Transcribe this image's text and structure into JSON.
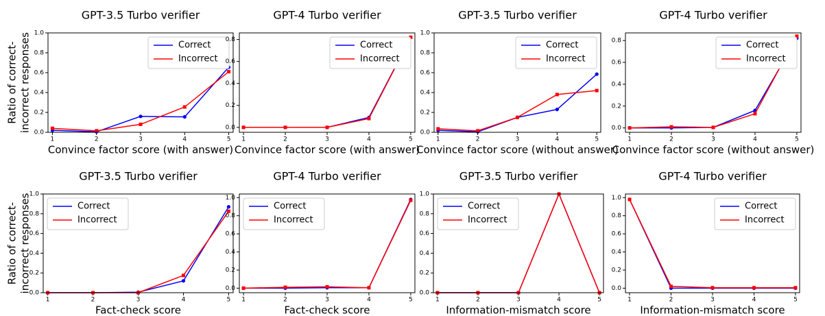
{
  "chart_data": [
    {
      "type": "line",
      "title": "GPT-3.5 Turbo verifier",
      "xlabel": "Convince factor score (with answer)",
      "ylabel": [
        "Ratio of correct-",
        "incorrect responses"
      ],
      "x": [
        1,
        2,
        3,
        4,
        5
      ],
      "xlim": [
        0.9,
        5.1
      ],
      "xticks": [
        1,
        2,
        3,
        4,
        5
      ],
      "ylim": [
        0,
        1
      ],
      "yticks": [
        {
          "value": 0,
          "label": "0.0"
        },
        0.2,
        0.4,
        0.6,
        0.8,
        {
          "value": 1,
          "label": "1.0"
        }
      ],
      "legend": "upper right",
      "series": [
        {
          "name": "Correct",
          "color": "#0000ff",
          "marker": "circle",
          "values": [
            0.02,
            0.005,
            0.16,
            0.155,
            0.655
          ]
        },
        {
          "name": "Incorrect",
          "color": "#ff0000",
          "marker": "square",
          "values": [
            0.04,
            0.015,
            0.08,
            0.255,
            0.61
          ]
        }
      ]
    },
    {
      "type": "line",
      "title": "GPT-4 Turbo verifier",
      "xlabel": "Convince factor score (with answer)",
      "x": [
        1,
        2,
        3,
        4,
        5
      ],
      "xlim": [
        0.9,
        5.1
      ],
      "xticks": [
        1,
        2,
        3,
        4,
        5
      ],
      "ylim": [
        -0.045,
        0.86
      ],
      "yticks": [
        {
          "value": 0,
          "label": "0.0"
        },
        0.2,
        0.4,
        0.6,
        0.8
      ],
      "legend": "upper right",
      "series": [
        {
          "name": "Correct",
          "color": "#0000ff",
          "marker": "circle",
          "values": [
            0,
            0,
            0,
            0.09,
            0.82
          ]
        },
        {
          "name": "Incorrect",
          "color": "#ff0000",
          "marker": "square",
          "values": [
            0,
            0,
            0,
            0.08,
            0.82
          ]
        }
      ]
    },
    {
      "type": "line",
      "title": "GPT-3.5 Turbo verifier",
      "xlabel": "Convince factor score (without answer)",
      "x": [
        1,
        2,
        3,
        4,
        5
      ],
      "xlim": [
        0.9,
        5.1
      ],
      "xticks": [
        1,
        2,
        3,
        4,
        5
      ],
      "ylim": [
        0,
        1
      ],
      "yticks": [
        {
          "value": 0,
          "label": "0.0"
        },
        0.2,
        0.4,
        0.6,
        0.8,
        {
          "value": 1,
          "label": "1.0"
        }
      ],
      "legend": "upper right",
      "series": [
        {
          "name": "Correct",
          "color": "#0000ff",
          "marker": "circle",
          "values": [
            0.02,
            0.005,
            0.15,
            0.23,
            0.585
          ]
        },
        {
          "name": "Incorrect",
          "color": "#ff0000",
          "marker": "square",
          "values": [
            0.035,
            0.015,
            0.15,
            0.38,
            0.42
          ]
        }
      ]
    },
    {
      "type": "line",
      "title": "GPT-4 Turbo verifier",
      "xlabel": "Convince factor score (without answer)",
      "x": [
        1,
        2,
        3,
        4,
        5
      ],
      "xlim": [
        0.9,
        5.1
      ],
      "xticks": [
        1,
        2,
        3,
        4,
        5
      ],
      "ylim": [
        -0.04,
        0.87
      ],
      "yticks": [
        {
          "value": 0,
          "label": "0.0"
        },
        0.2,
        0.4,
        0.6,
        0.8
      ],
      "legend": "upper right",
      "series": [
        {
          "name": "Correct",
          "color": "#0000ff",
          "marker": "circle",
          "values": [
            0,
            0,
            0.005,
            0.16,
            0.82
          ]
        },
        {
          "name": "Incorrect",
          "color": "#ff0000",
          "marker": "square",
          "values": [
            0,
            0.01,
            0.005,
            0.13,
            0.84
          ]
        }
      ]
    },
    {
      "type": "line",
      "title": "GPT-3.5 Turbo verifier",
      "xlabel": "Fact-check score",
      "ylabel": [
        "Ratio of correct-",
        "incorrect responses"
      ],
      "x": [
        1,
        2,
        3,
        4,
        5
      ],
      "xlim": [
        0.9,
        5.1
      ],
      "xticks": [
        1,
        2,
        3,
        4,
        5
      ],
      "ylim": [
        0,
        1
      ],
      "yticks": [
        {
          "value": 0,
          "label": "0.0"
        },
        0.2,
        0.4,
        0.6,
        0.8,
        {
          "value": 1,
          "label": "1.0"
        }
      ],
      "legend": "upper left",
      "series": [
        {
          "name": "Correct",
          "color": "#0000ff",
          "marker": "circle",
          "values": [
            0,
            0,
            0.005,
            0.12,
            0.87
          ]
        },
        {
          "name": "Incorrect",
          "color": "#ff0000",
          "marker": "square",
          "values": [
            0,
            0,
            0,
            0.175,
            0.825
          ]
        }
      ]
    },
    {
      "type": "line",
      "title": "GPT-4 Turbo verifier",
      "xlabel": "Fact-check score",
      "x": [
        1,
        2,
        3,
        4,
        5
      ],
      "xlim": [
        0.9,
        5.1
      ],
      "xticks": [
        1,
        2,
        3,
        4,
        5
      ],
      "ylim": [
        -0.05,
        1.04
      ],
      "yticks": [
        {
          "value": 0,
          "label": "0.0"
        },
        0.2,
        0.4,
        0.6,
        0.8,
        {
          "value": 1,
          "label": "1.0"
        }
      ],
      "legend": "upper left",
      "series": [
        {
          "name": "Correct",
          "color": "#0000ff",
          "marker": "circle",
          "values": [
            0,
            0,
            0.005,
            0.005,
            0.98
          ]
        },
        {
          "name": "Incorrect",
          "color": "#ff0000",
          "marker": "square",
          "values": [
            0,
            0.01,
            0.015,
            0.005,
            0.97
          ]
        }
      ]
    },
    {
      "type": "line",
      "title": "GPT-3.5 Turbo verifier",
      "xlabel": "Information-mismatch score",
      "x": [
        1,
        2,
        3,
        4,
        5
      ],
      "xlim": [
        0.9,
        5.1
      ],
      "xticks": [
        1,
        2,
        3,
        4,
        5
      ],
      "ylim": [
        0,
        1
      ],
      "yticks": [
        {
          "value": 0,
          "label": "0.0"
        },
        0.2,
        0.4,
        0.6,
        0.8,
        {
          "value": 1,
          "label": "1.0"
        }
      ],
      "legend": "upper left",
      "series": [
        {
          "name": "Correct",
          "color": "#0000ff",
          "marker": "circle",
          "values": [
            0,
            0,
            0,
            1,
            0
          ]
        },
        {
          "name": "Incorrect",
          "color": "#ff0000",
          "marker": "square",
          "values": [
            0,
            0,
            0,
            1,
            0
          ]
        }
      ]
    },
    {
      "type": "line",
      "title": "GPT-4 Turbo verifier",
      "xlabel": "Information-mismatch score",
      "x": [
        1,
        2,
        3,
        4,
        5
      ],
      "xlim": [
        0.9,
        5.1
      ],
      "xticks": [
        1,
        2,
        3,
        4,
        5
      ],
      "ylim": [
        -0.05,
        1.04
      ],
      "yticks": [
        {
          "value": 0,
          "label": "0.0"
        },
        0.2,
        0.4,
        0.6,
        0.8,
        {
          "value": 1,
          "label": "1.0"
        }
      ],
      "legend": "upper right",
      "series": [
        {
          "name": "Correct",
          "color": "#0000ff",
          "marker": "circle",
          "values": [
            0.98,
            0,
            0,
            0,
            0
          ]
        },
        {
          "name": "Incorrect",
          "color": "#ff0000",
          "marker": "square",
          "values": [
            0.98,
            0.02,
            0.005,
            0.005,
            0.005
          ]
        }
      ]
    }
  ]
}
